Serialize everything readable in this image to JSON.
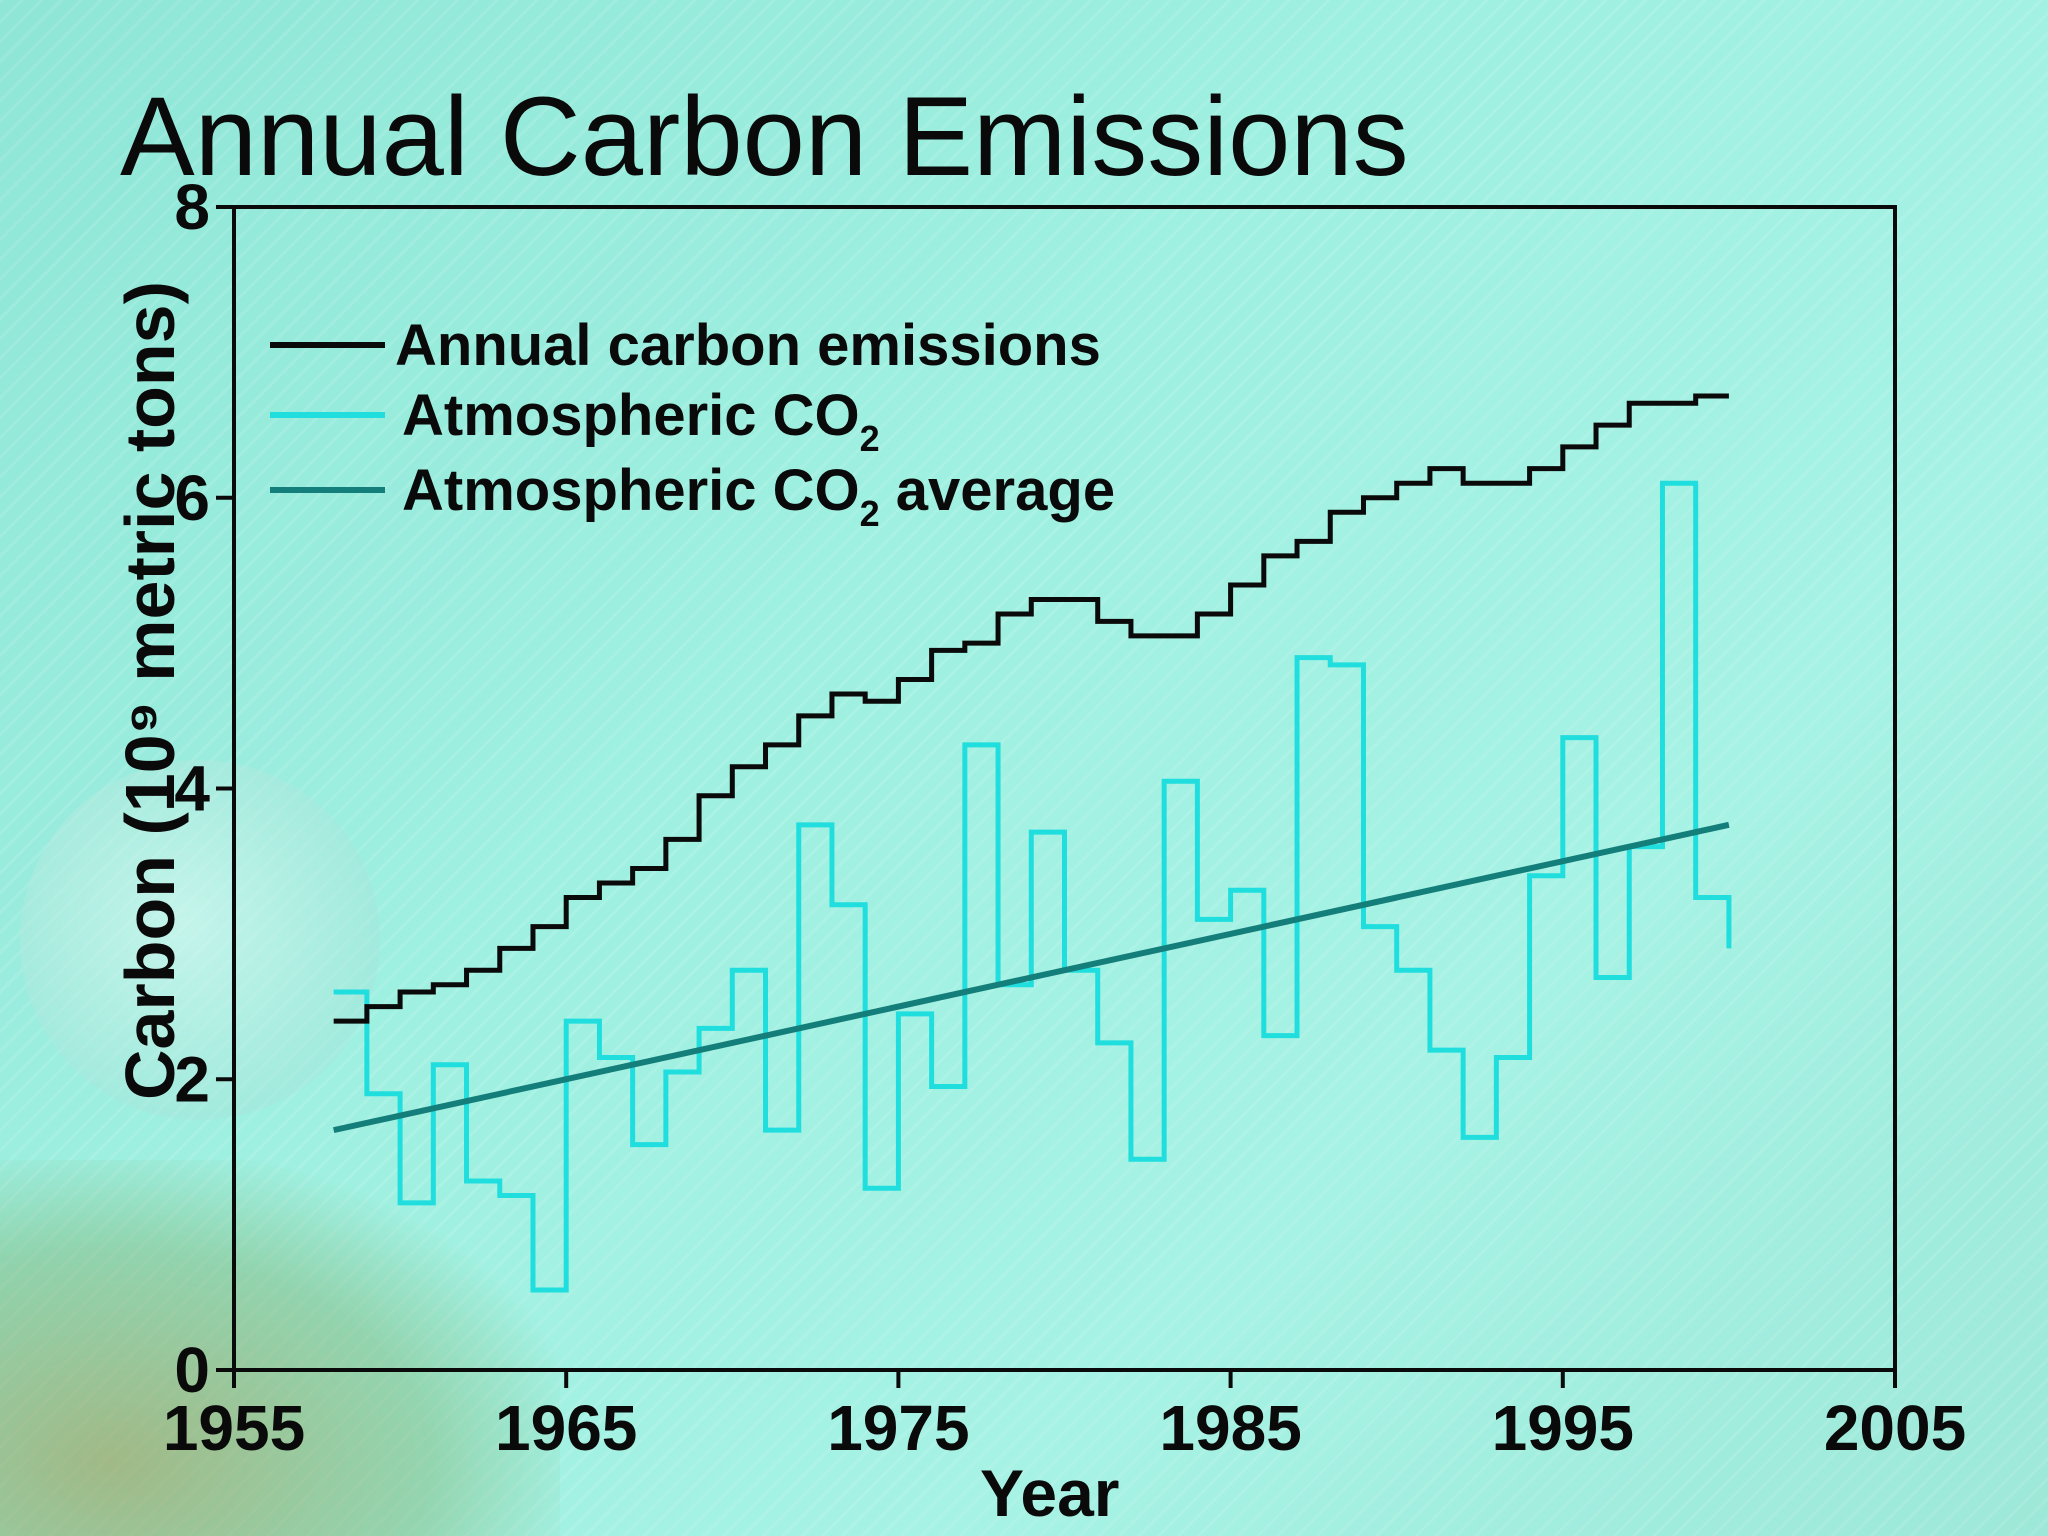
{
  "chart_data": {
    "type": "line",
    "title": "Annual Carbon Emissions",
    "xlabel": "Year",
    "ylabel": "Carbon (10⁹ metric tons)",
    "xlim": [
      1955,
      2005
    ],
    "ylim": [
      0,
      8
    ],
    "x_ticks": [
      1955,
      1965,
      1975,
      1985,
      1995,
      2005
    ],
    "y_ticks": [
      0,
      2,
      4,
      6,
      8
    ],
    "grid": false,
    "legend_position": "top-left",
    "x": [
      1958,
      1959,
      1960,
      1961,
      1962,
      1963,
      1964,
      1965,
      1966,
      1967,
      1968,
      1969,
      1970,
      1971,
      1972,
      1973,
      1974,
      1975,
      1976,
      1977,
      1978,
      1979,
      1980,
      1981,
      1982,
      1983,
      1984,
      1985,
      1986,
      1987,
      1988,
      1989,
      1990,
      1991,
      1992,
      1993,
      1994,
      1995,
      1996,
      1997,
      1998,
      1999,
      2000
    ],
    "series": [
      {
        "name": "Annual carbon emissions",
        "style": "step",
        "color": "#0a0a0a",
        "values": [
          2.4,
          2.5,
          2.6,
          2.65,
          2.75,
          2.9,
          3.05,
          3.25,
          3.35,
          3.45,
          3.65,
          3.95,
          4.15,
          4.3,
          4.5,
          4.65,
          4.6,
          4.75,
          4.95,
          5.0,
          5.2,
          5.3,
          5.3,
          5.15,
          5.05,
          5.05,
          5.2,
          5.4,
          5.6,
          5.7,
          5.9,
          6.0,
          6.1,
          6.2,
          6.1,
          6.1,
          6.2,
          6.35,
          6.5,
          6.65,
          6.65,
          6.7,
          6.7
        ]
      },
      {
        "name": "Atmospheric CO",
        "name_subscript": "2",
        "style": "step",
        "color": "#1fdedd",
        "values": [
          2.6,
          1.9,
          1.15,
          2.1,
          1.3,
          1.2,
          0.55,
          2.4,
          2.15,
          1.55,
          2.05,
          2.35,
          2.75,
          1.65,
          3.75,
          3.2,
          1.25,
          2.45,
          1.95,
          4.3,
          2.65,
          3.7,
          2.75,
          2.25,
          1.45,
          4.05,
          3.1,
          3.3,
          2.3,
          4.9,
          4.85,
          3.05,
          2.75,
          2.2,
          1.6,
          2.15,
          3.4,
          4.35,
          2.7,
          3.6,
          6.1,
          3.25,
          2.9
        ]
      },
      {
        "name": "Atmospheric CO",
        "name_subscript": "2",
        "name_suffix": " average",
        "style": "line",
        "color": "#147e7a",
        "x": [
          1958,
          2000
        ],
        "values": [
          1.65,
          3.75
        ]
      }
    ]
  }
}
